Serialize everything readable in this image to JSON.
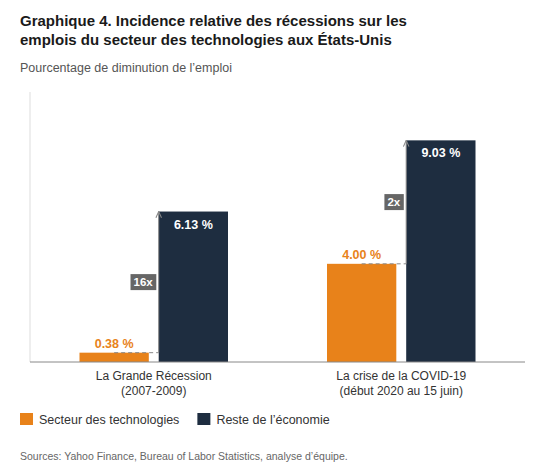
{
  "chart_data": {
    "type": "bar",
    "title": "Graphique 4. Incidence relative des récessions sur les\nemplois du secteur des technologies aux États-Unis",
    "subtitle": "Pourcentage de diminution de l’emploi",
    "categories": [
      "La Grande Récession\n(2007-2009)",
      "La crise de la COVID-19\n(début 2020 au 15 juin)"
    ],
    "series": [
      {
        "name": "Secteur des technologies",
        "color": "#E8821A",
        "values": [
          0.38,
          4.0
        ],
        "value_labels": [
          "0.38 %",
          "4.00 %"
        ]
      },
      {
        "name": "Reste de l’économie",
        "color": "#1E2D40",
        "values": [
          6.13,
          9.03
        ],
        "value_labels": [
          "6.13 %",
          "9.03 %"
        ]
      }
    ],
    "annotations": [
      "16x",
      "2x"
    ],
    "source": "Sources: Yahoo Finance, Bureau of Labor Statistics, analyse d’équipe.",
    "ylim": [
      0,
      11.0
    ],
    "yticks": [],
    "tick_labels": "x",
    "data_labels": true,
    "grid": false,
    "legend": "bottom"
  }
}
